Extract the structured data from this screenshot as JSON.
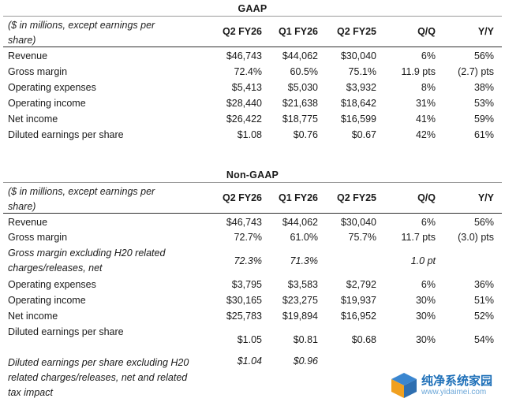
{
  "gaap": {
    "title": "GAAP",
    "desc": "($ in millions, except earnings per share)",
    "headers": [
      "Q2 FY26",
      "Q1 FY26",
      "Q2 FY25",
      "Q/Q",
      "Y/Y"
    ],
    "rows": [
      {
        "label": "Revenue",
        "v": [
          "$46,743",
          "$44,062",
          "$30,040",
          "6%",
          "56%"
        ]
      },
      {
        "label": "Gross margin",
        "v": [
          "72.4%",
          "60.5%",
          "75.1%",
          "11.9 pts",
          "(2.7) pts"
        ]
      },
      {
        "label": "Operating expenses",
        "v": [
          "$5,413",
          "$5,030",
          "$3,932",
          "8%",
          "38%"
        ]
      },
      {
        "label": "Operating income",
        "v": [
          "$28,440",
          "$21,638",
          "$18,642",
          "31%",
          "53%"
        ]
      },
      {
        "label": "Net income",
        "v": [
          "$26,422",
          "$18,775",
          "$16,599",
          "41%",
          "59%"
        ]
      },
      {
        "label": "Diluted earnings per share",
        "v": [
          "$1.08",
          "$0.76",
          "$0.67",
          "42%",
          "61%"
        ]
      }
    ]
  },
  "nongaap": {
    "title": "Non-GAAP",
    "desc": "($ in millions, except earnings per share)",
    "headers": [
      "Q2 FY26",
      "Q1 FY26",
      "Q2 FY25",
      "Q/Q",
      "Y/Y"
    ],
    "rows": [
      {
        "label": "Revenue",
        "v": [
          "$46,743",
          "$44,062",
          "$30,040",
          "6%",
          "56%"
        ]
      },
      {
        "label": "Gross margin",
        "v": [
          "72.7%",
          "61.0%",
          "75.7%",
          "11.7 pts",
          "(3.0) pts"
        ]
      },
      {
        "label": "Gross margin excluding H20 related charges/releases, net",
        "v": [
          "72.3%",
          "71.3%",
          "",
          "1.0 pt",
          ""
        ]
      },
      {
        "label": "Operating expenses",
        "v": [
          "$3,795",
          "$3,583",
          "$2,792",
          "6%",
          "36%"
        ]
      },
      {
        "label": "Operating income",
        "v": [
          "$30,165",
          "$23,275",
          "$19,937",
          "30%",
          "51%"
        ]
      },
      {
        "label": "Net income",
        "v": [
          "$25,783",
          "$19,894",
          "$16,952",
          "30%",
          "52%"
        ]
      },
      {
        "label": "Diluted earnings per share",
        "v": [
          "$1.05",
          "$0.81",
          "$0.68",
          "30%",
          "54%"
        ]
      },
      {
        "label": "Diluted earnings per share excluding H20 related charges/releases, net and related tax impact",
        "v": [
          "$1.04",
          "$0.96",
          "",
          "",
          ""
        ]
      }
    ]
  },
  "watermark": {
    "line1": "纯净系统家园",
    "line2": "www.yidaimei.com"
  }
}
